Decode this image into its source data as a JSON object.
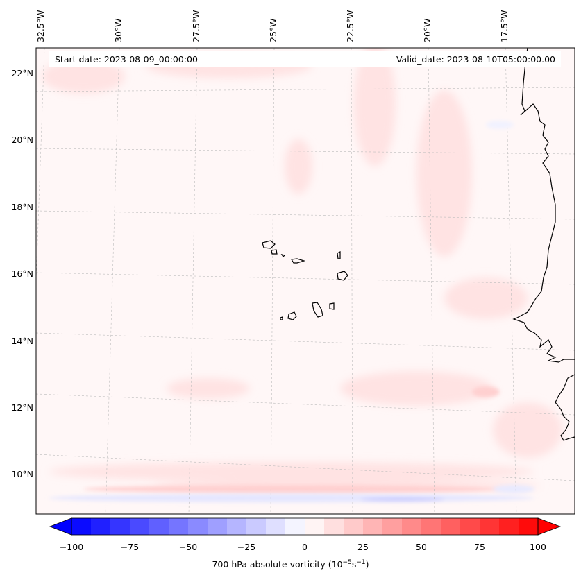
{
  "info": {
    "start_label": "Start date: 2023-08-09_00:00:00",
    "valid_label": "Valid_date: 2023-08-10T05:00:00.00"
  },
  "axes": {
    "lon_labels": [
      "32.5°W",
      "30°W",
      "27.5°W",
      "25°W",
      "22.5°W",
      "20°W",
      "17.5°W"
    ],
    "lat_labels": [
      "22°N",
      "20°N",
      "18°N",
      "16°N",
      "14°N",
      "12°N",
      "10°N"
    ]
  },
  "colorbar": {
    "label_prefix": "700 hPa absolute vorticity (10",
    "label_exp1": "−5",
    "label_mid": "s",
    "label_exp2": "−1",
    "label_suffix": ")",
    "ticks": [
      "−100",
      "−75",
      "−50",
      "−25",
      "0",
      "25",
      "50",
      "75",
      "100"
    ],
    "vmin": -100,
    "vmax": 100,
    "levels": 24,
    "neg_color": "#0000ff",
    "pos_color": "#ff0000"
  },
  "map": {
    "islands": [
      "Santo Antão",
      "São Vicente",
      "Santa Luzia",
      "São Nicolau",
      "Sal",
      "Boa Vista",
      "Brava",
      "Fogo",
      "Santiago",
      "Maio"
    ]
  }
}
